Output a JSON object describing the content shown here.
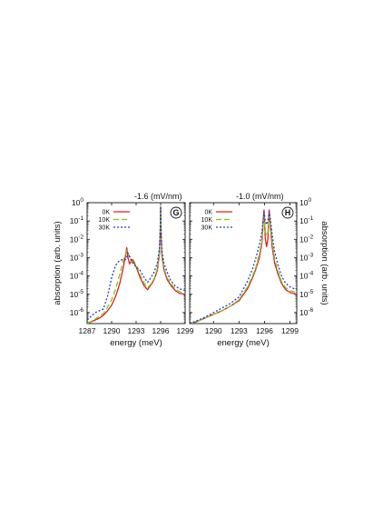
{
  "chart_data": [
    {
      "type": "line",
      "panel": "G",
      "title": "-1.6 (mV/nm)",
      "xlabel": "energy (meV)",
      "ylabel": "absorption (arb. units)",
      "ylabel_position": "left",
      "y_scale": "log",
      "xlim": [
        1287,
        1299
      ],
      "ylim_exponent": [
        -6.6,
        0
      ],
      "x_ticks": [
        1287,
        1290,
        1293,
        1296,
        1299
      ],
      "x_tick_labels": [
        "1287",
        "1290",
        "1293",
        "1296",
        "1299"
      ],
      "y_ticks": [
        {
          "mantissa": "10",
          "exp": "0"
        },
        {
          "mantissa": "10",
          "exp": "-1"
        },
        {
          "mantissa": "10",
          "exp": "-2"
        },
        {
          "mantissa": "10",
          "exp": "-3"
        },
        {
          "mantissa": "10",
          "exp": "-4"
        },
        {
          "mantissa": "10",
          "exp": "-5"
        },
        {
          "mantissa": "10",
          "exp": "-6"
        }
      ],
      "legend_position": "top-left",
      "series": [
        {
          "name": "0K",
          "color": "#e0201c",
          "dash": "solid",
          "x": [
            1287.0,
            1288.0,
            1288.5,
            1289.0,
            1289.5,
            1290.0,
            1290.5,
            1291.0,
            1291.4,
            1291.7,
            1291.85,
            1292.0,
            1292.2,
            1292.5,
            1293.0,
            1293.5,
            1294.0,
            1294.4,
            1294.8,
            1295.2,
            1295.6,
            1295.85,
            1295.95,
            1296.0,
            1296.05,
            1296.15,
            1296.4,
            1296.8,
            1297.3,
            1297.8,
            1298.3,
            1299.0
          ],
          "y": [
            -6.6,
            -6.4,
            -6.3,
            -6.15,
            -5.9,
            -5.6,
            -5.1,
            -4.4,
            -3.6,
            -2.9,
            -2.45,
            -3.0,
            -3.35,
            -3.1,
            -3.5,
            -4.1,
            -4.55,
            -4.75,
            -4.5,
            -4.2,
            -3.7,
            -2.8,
            -1.6,
            -0.2,
            -1.6,
            -2.9,
            -3.65,
            -4.2,
            -4.55,
            -4.8,
            -4.95,
            -5.0
          ]
        },
        {
          "name": "10K",
          "color": "#7dc71b",
          "dash": "long",
          "x": [
            1287.0,
            1288.0,
            1288.5,
            1289.0,
            1289.5,
            1290.0,
            1290.5,
            1291.0,
            1291.4,
            1291.7,
            1291.85,
            1292.0,
            1292.2,
            1292.5,
            1293.0,
            1293.5,
            1294.0,
            1294.4,
            1294.8,
            1295.2,
            1295.6,
            1295.85,
            1295.95,
            1296.0,
            1296.05,
            1296.15,
            1296.4,
            1296.8,
            1297.3,
            1297.8,
            1298.3,
            1299.0
          ],
          "y": [
            -6.6,
            -6.35,
            -6.2,
            -6.05,
            -5.7,
            -5.3,
            -4.7,
            -3.9,
            -3.2,
            -2.8,
            -2.6,
            -2.75,
            -2.95,
            -3.0,
            -3.4,
            -3.95,
            -4.4,
            -4.65,
            -4.45,
            -4.15,
            -3.6,
            -2.7,
            -1.5,
            -0.2,
            -1.5,
            -2.8,
            -3.55,
            -4.1,
            -4.45,
            -4.7,
            -4.85,
            -4.95
          ]
        },
        {
          "name": "30K",
          "color": "#1f3fd0",
          "dash": "short",
          "x": [
            1287.0,
            1288.0,
            1288.5,
            1289.0,
            1289.5,
            1290.0,
            1290.5,
            1291.0,
            1291.4,
            1291.7,
            1291.85,
            1292.0,
            1292.2,
            1292.5,
            1293.0,
            1293.5,
            1294.0,
            1294.4,
            1294.8,
            1295.2,
            1295.6,
            1295.85,
            1295.95,
            1296.0,
            1296.05,
            1296.15,
            1296.4,
            1296.8,
            1297.3,
            1297.8,
            1298.3,
            1299.0
          ],
          "y": [
            -6.4,
            -6.0,
            -5.9,
            -5.8,
            -5.1,
            -4.1,
            -3.4,
            -3.15,
            -3.1,
            -3.1,
            -3.0,
            -2.75,
            -2.95,
            -3.25,
            -3.5,
            -3.7,
            -4.1,
            -4.35,
            -4.1,
            -3.8,
            -3.3,
            -2.5,
            -1.4,
            -0.2,
            -1.4,
            -2.6,
            -3.3,
            -3.8,
            -4.3,
            -4.55,
            -4.7,
            -4.8
          ]
        }
      ]
    },
    {
      "type": "line",
      "panel": "H",
      "title": "-1.0 (mV/nm)",
      "xlabel": "energy (meV)",
      "ylabel": "absorption (arb. units)",
      "ylabel_position": "right",
      "y_scale": "log",
      "xlim": [
        1287.2,
        1299.8
      ],
      "ylim_exponent": [
        -6.6,
        0
      ],
      "x_ticks": [
        1290,
        1293,
        1296,
        1299
      ],
      "x_tick_labels": [
        "1290",
        "1293",
        "1296",
        "1299"
      ],
      "y_ticks": [
        {
          "mantissa": "10",
          "exp": "0"
        },
        {
          "mantissa": "10",
          "exp": "-1"
        },
        {
          "mantissa": "10",
          "exp": "-2"
        },
        {
          "mantissa": "10",
          "exp": "-3"
        },
        {
          "mantissa": "10",
          "exp": "-4"
        },
        {
          "mantissa": "10",
          "exp": "-5"
        },
        {
          "mantissa": "10",
          "exp": "-6"
        }
      ],
      "legend_position": "top-left",
      "series": [
        {
          "name": "0K",
          "color": "#e0201c",
          "dash": "solid",
          "x": [
            1287.2,
            1288.0,
            1289.0,
            1290.0,
            1291.0,
            1292.0,
            1293.0,
            1294.0,
            1294.6,
            1295.0,
            1295.4,
            1295.7,
            1295.85,
            1295.95,
            1296.1,
            1296.25,
            1296.4,
            1296.55,
            1296.7,
            1296.9,
            1297.2,
            1297.6,
            1298.0,
            1298.5,
            1299.0,
            1299.8
          ],
          "y": [
            -6.6,
            -6.5,
            -6.3,
            -6.1,
            -5.9,
            -5.65,
            -5.35,
            -4.7,
            -4.1,
            -3.6,
            -3.0,
            -2.2,
            -1.0,
            -0.4,
            -2.0,
            -2.4,
            -2.0,
            -0.4,
            -1.3,
            -2.4,
            -3.3,
            -3.9,
            -4.4,
            -4.75,
            -4.9,
            -5.0
          ]
        },
        {
          "name": "10K",
          "color": "#7dc71b",
          "dash": "long",
          "x": [
            1287.2,
            1288.0,
            1289.0,
            1290.0,
            1291.0,
            1292.0,
            1293.0,
            1294.0,
            1294.6,
            1295.0,
            1295.4,
            1295.7,
            1295.85,
            1295.95,
            1296.1,
            1296.25,
            1296.4,
            1296.55,
            1296.7,
            1296.9,
            1297.2,
            1297.6,
            1298.0,
            1298.5,
            1299.0,
            1299.8
          ],
          "y": [
            -6.6,
            -6.5,
            -6.3,
            -6.1,
            -5.9,
            -5.65,
            -5.3,
            -4.6,
            -4.0,
            -3.5,
            -2.8,
            -2.1,
            -1.2,
            -0.8,
            -1.6,
            -1.8,
            -1.6,
            -0.7,
            -1.2,
            -2.1,
            -3.1,
            -3.75,
            -4.3,
            -4.65,
            -4.8,
            -4.9
          ]
        },
        {
          "name": "30K",
          "color": "#1f3fd0",
          "dash": "short",
          "x": [
            1287.2,
            1288.0,
            1289.0,
            1290.0,
            1291.0,
            1292.0,
            1293.0,
            1294.0,
            1294.6,
            1295.0,
            1295.4,
            1295.7,
            1295.85,
            1295.95,
            1296.1,
            1296.25,
            1296.4,
            1296.55,
            1296.7,
            1296.9,
            1297.2,
            1297.6,
            1298.0,
            1298.5,
            1299.0,
            1299.8
          ],
          "y": [
            -6.6,
            -6.45,
            -6.25,
            -6.0,
            -5.75,
            -5.5,
            -5.15,
            -4.3,
            -3.6,
            -3.0,
            -2.3,
            -1.6,
            -0.9,
            -0.5,
            -1.0,
            -1.2,
            -1.0,
            -0.5,
            -0.9,
            -1.7,
            -2.7,
            -3.4,
            -4.0,
            -4.4,
            -4.6,
            -4.75
          ]
        }
      ]
    }
  ]
}
